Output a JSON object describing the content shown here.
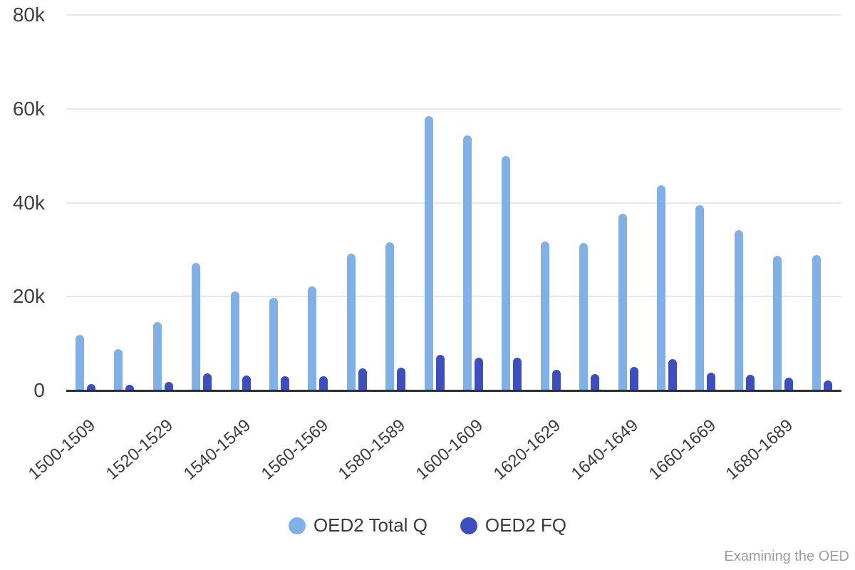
{
  "watermark": "Examining the OED",
  "colors": {
    "series_total": "#7fb1e8",
    "series_fq": "#3d4ec0",
    "gridline": "#e7e7e7",
    "axis_line": "#2f2f2f",
    "y_tick_text": "#404040",
    "x_tick_text": "#3c3c3c",
    "legend_text": "#3a3a3a",
    "watermark_text": "#9e9e9e",
    "background": "#ffffff"
  },
  "chart_data": {
    "type": "bar",
    "title": "",
    "categories": [
      "1500-1509",
      "1510-1519",
      "1520-1529",
      "1530-1539",
      "1540-1549",
      "1550-1559",
      "1560-1569",
      "1570-1579",
      "1580-1589",
      "1590-1599",
      "1600-1609",
      "1610-1619",
      "1620-1629",
      "1630-1639",
      "1640-1649",
      "1650-1659",
      "1660-1669",
      "1670-1679",
      "1680-1689",
      "1690-1699"
    ],
    "x_tick_labels_shown": [
      "1500-1509",
      "1520-1529",
      "1540-1549",
      "1560-1569",
      "1580-1589",
      "1600-1609",
      "1620-1629",
      "1640-1649",
      "1660-1669",
      "1680-1689"
    ],
    "series": [
      {
        "name": "OED2 Total Q",
        "color": "#7fb1e8",
        "values": [
          11800,
          8800,
          14500,
          27100,
          21100,
          19800,
          22200,
          29100,
          31600,
          58500,
          54400,
          49900,
          31800,
          31400,
          37700,
          43700,
          39400,
          34100,
          28700,
          28900
        ]
      },
      {
        "name": "OED2 FQ",
        "color": "#3d4ec0",
        "values": [
          1400,
          1200,
          1800,
          3600,
          3200,
          3000,
          3100,
          4700,
          4800,
          7600,
          7000,
          7000,
          4400,
          3500,
          5000,
          6700,
          3800,
          3400,
          2800,
          2200
        ]
      }
    ],
    "xlabel": "",
    "ylabel": "",
    "ylim": [
      0,
      80000
    ],
    "y_ticks": [
      {
        "value": 0,
        "label": "0"
      },
      {
        "value": 20000,
        "label": "20k"
      },
      {
        "value": 40000,
        "label": "40k"
      },
      {
        "value": 60000,
        "label": "60k"
      },
      {
        "value": 80000,
        "label": "80k"
      }
    ],
    "grid": true,
    "legend_position": "bottom"
  }
}
